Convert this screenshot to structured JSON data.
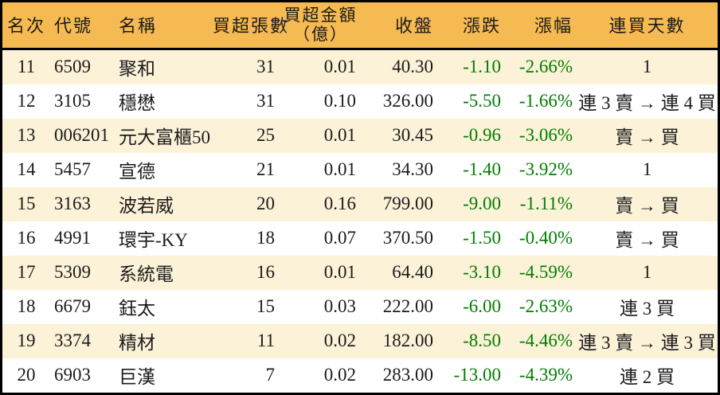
{
  "chart_data": {
    "type": "table",
    "columns": [
      {
        "key": "rank",
        "label": "名次",
        "align": "center"
      },
      {
        "key": "code",
        "label": "代號",
        "align": "left"
      },
      {
        "key": "name",
        "label": "名稱",
        "align": "left"
      },
      {
        "key": "volume",
        "label": "買超張數",
        "align": "right"
      },
      {
        "key": "amount",
        "label": "買超金額",
        "label2": "（億）",
        "align": "right"
      },
      {
        "key": "close",
        "label": "收盤",
        "align": "right"
      },
      {
        "key": "change",
        "label": "漲跌",
        "align": "right",
        "negative_color": true
      },
      {
        "key": "pct",
        "label": "漲幅",
        "align": "right",
        "negative_color": true
      },
      {
        "key": "streak",
        "label": "連買天數",
        "align": "center"
      }
    ],
    "rows": [
      {
        "rank": "11",
        "code": "6509",
        "name": "聚和",
        "volume": "31",
        "amount": "0.01",
        "close": "40.30",
        "change": "-1.10",
        "pct": "-2.66%",
        "streak": "1"
      },
      {
        "rank": "12",
        "code": "3105",
        "name": "穩懋",
        "volume": "31",
        "amount": "0.10",
        "close": "326.00",
        "change": "-5.50",
        "pct": "-1.66%",
        "streak": "連 3 賣 → 連 4 買"
      },
      {
        "rank": "13",
        "code": "006201",
        "name": "元大富櫃50",
        "volume": "25",
        "amount": "0.01",
        "close": "30.45",
        "change": "-0.96",
        "pct": "-3.06%",
        "streak": "賣 → 買"
      },
      {
        "rank": "14",
        "code": "5457",
        "name": "宣德",
        "volume": "21",
        "amount": "0.01",
        "close": "34.30",
        "change": "-1.40",
        "pct": "-3.92%",
        "streak": "1"
      },
      {
        "rank": "15",
        "code": "3163",
        "name": "波若威",
        "volume": "20",
        "amount": "0.16",
        "close": "799.00",
        "change": "-9.00",
        "pct": "-1.11%",
        "streak": "賣 → 買"
      },
      {
        "rank": "16",
        "code": "4991",
        "name": "環宇-KY",
        "volume": "18",
        "amount": "0.07",
        "close": "370.50",
        "change": "-1.50",
        "pct": "-0.40%",
        "streak": "賣 → 買"
      },
      {
        "rank": "17",
        "code": "5309",
        "name": "系統電",
        "volume": "16",
        "amount": "0.01",
        "close": "64.40",
        "change": "-3.10",
        "pct": "-4.59%",
        "streak": "1"
      },
      {
        "rank": "18",
        "code": "6679",
        "name": "鈺太",
        "volume": "15",
        "amount": "0.03",
        "close": "222.00",
        "change": "-6.00",
        "pct": "-2.63%",
        "streak": "連 3 買"
      },
      {
        "rank": "19",
        "code": "3374",
        "name": "精材",
        "volume": "11",
        "amount": "0.02",
        "close": "182.00",
        "change": "-8.50",
        "pct": "-4.46%",
        "streak": "連 3 賣 → 連 3 買"
      },
      {
        "rank": "20",
        "code": "6903",
        "name": "巨漢",
        "volume": "7",
        "amount": "0.02",
        "close": "283.00",
        "change": "-13.00",
        "pct": "-4.39%",
        "streak": "連 2 買"
      }
    ]
  },
  "colors": {
    "header_bg": "#F6BA52",
    "row_stripe_bg": "#FCF2D8",
    "row_bg": "#FFFFFF",
    "negative_green": "#007D00",
    "border": "#000000",
    "text": "#1B1B1B"
  }
}
